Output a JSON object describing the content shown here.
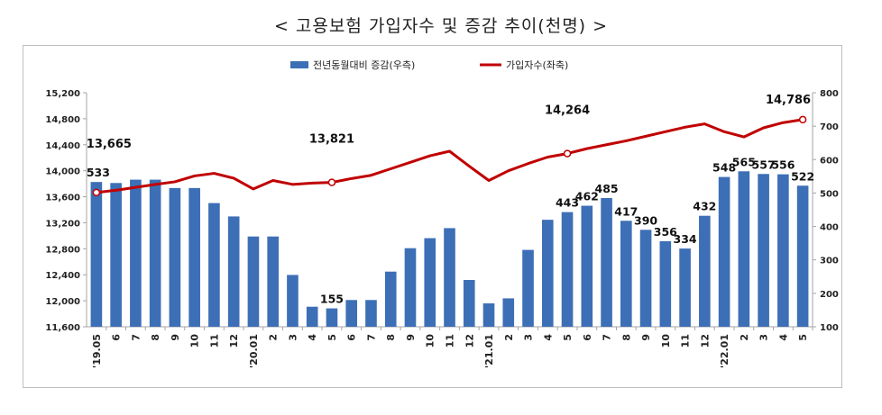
{
  "title": "< 고용보험 가입자수 및 증감 추이(천명) >",
  "chart_data": {
    "type": "bar+line",
    "categories": [
      "'19.05",
      "6",
      "7",
      "8",
      "9",
      "10",
      "11",
      "12",
      "'20.01",
      "2",
      "3",
      "4",
      "5",
      "6",
      "7",
      "8",
      "9",
      "10",
      "11",
      "12",
      "'21.01",
      "2",
      "3",
      "4",
      "5",
      "6",
      "7",
      "8",
      "9",
      "10",
      "11",
      "12",
      "'22.01",
      "2",
      "3",
      "4",
      "5"
    ],
    "series": [
      {
        "name": "전년동월대비 증감(우측)",
        "kind": "bar",
        "axis": "right",
        "color": "#3d6fb6",
        "values": [
          533,
          530,
          540,
          540,
          515,
          515,
          470,
          430,
          370,
          370,
          255,
          160,
          155,
          180,
          180,
          265,
          335,
          365,
          395,
          240,
          170,
          185,
          330,
          420,
          443,
          462,
          485,
          417,
          390,
          356,
          334,
          432,
          548,
          565,
          557,
          556,
          522
        ]
      },
      {
        "name": "가입자수(좌축)",
        "kind": "line",
        "axis": "left",
        "color": "#c00000",
        "values": [
          13665,
          13700,
          13745,
          13790,
          13830,
          13920,
          13960,
          13885,
          13720,
          13850,
          13790,
          13810,
          13821,
          13880,
          13930,
          14030,
          14130,
          14230,
          14300,
          14070,
          13850,
          14000,
          14110,
          14210,
          14264,
          14340,
          14400,
          14460,
          14530,
          14600,
          14670,
          14720,
          14600,
          14520,
          14660,
          14740,
          14786
        ]
      }
    ],
    "data_labels": [
      {
        "series": 0,
        "index": 0,
        "text": "533"
      },
      {
        "series": 0,
        "index": 12,
        "text": "155"
      },
      {
        "series": 0,
        "index": 24,
        "text": "443"
      },
      {
        "series": 0,
        "index": 25,
        "text": "462"
      },
      {
        "series": 0,
        "index": 26,
        "text": "485"
      },
      {
        "series": 0,
        "index": 27,
        "text": "417"
      },
      {
        "series": 0,
        "index": 28,
        "text": "390"
      },
      {
        "series": 0,
        "index": 29,
        "text": "356"
      },
      {
        "series": 0,
        "index": 30,
        "text": "334"
      },
      {
        "series": 0,
        "index": 31,
        "text": "432"
      },
      {
        "series": 0,
        "index": 32,
        "text": "548"
      },
      {
        "series": 0,
        "index": 33,
        "text": "565"
      },
      {
        "series": 0,
        "index": 34,
        "text": "557"
      },
      {
        "series": 0,
        "index": 35,
        "text": "556"
      },
      {
        "series": 0,
        "index": 36,
        "text": "522"
      },
      {
        "series": 1,
        "index": 0,
        "text": "13,665"
      },
      {
        "series": 1,
        "index": 12,
        "text": "13,821"
      },
      {
        "series": 1,
        "index": 24,
        "text": "14,264"
      },
      {
        "series": 1,
        "index": 36,
        "text": "14,786"
      }
    ],
    "y_left": {
      "ylim": [
        11600,
        15200
      ],
      "ticks": [
        "11,600",
        "12,000",
        "12,400",
        "12,800",
        "13,200",
        "13,600",
        "14,000",
        "14,400",
        "14,800",
        "15,200"
      ]
    },
    "y_right": {
      "ylim": [
        100,
        800
      ],
      "ticks": [
        "100",
        "200",
        "300",
        "400",
        "500",
        "600",
        "700",
        "800"
      ]
    },
    "grid": false,
    "legend": "top-center"
  }
}
